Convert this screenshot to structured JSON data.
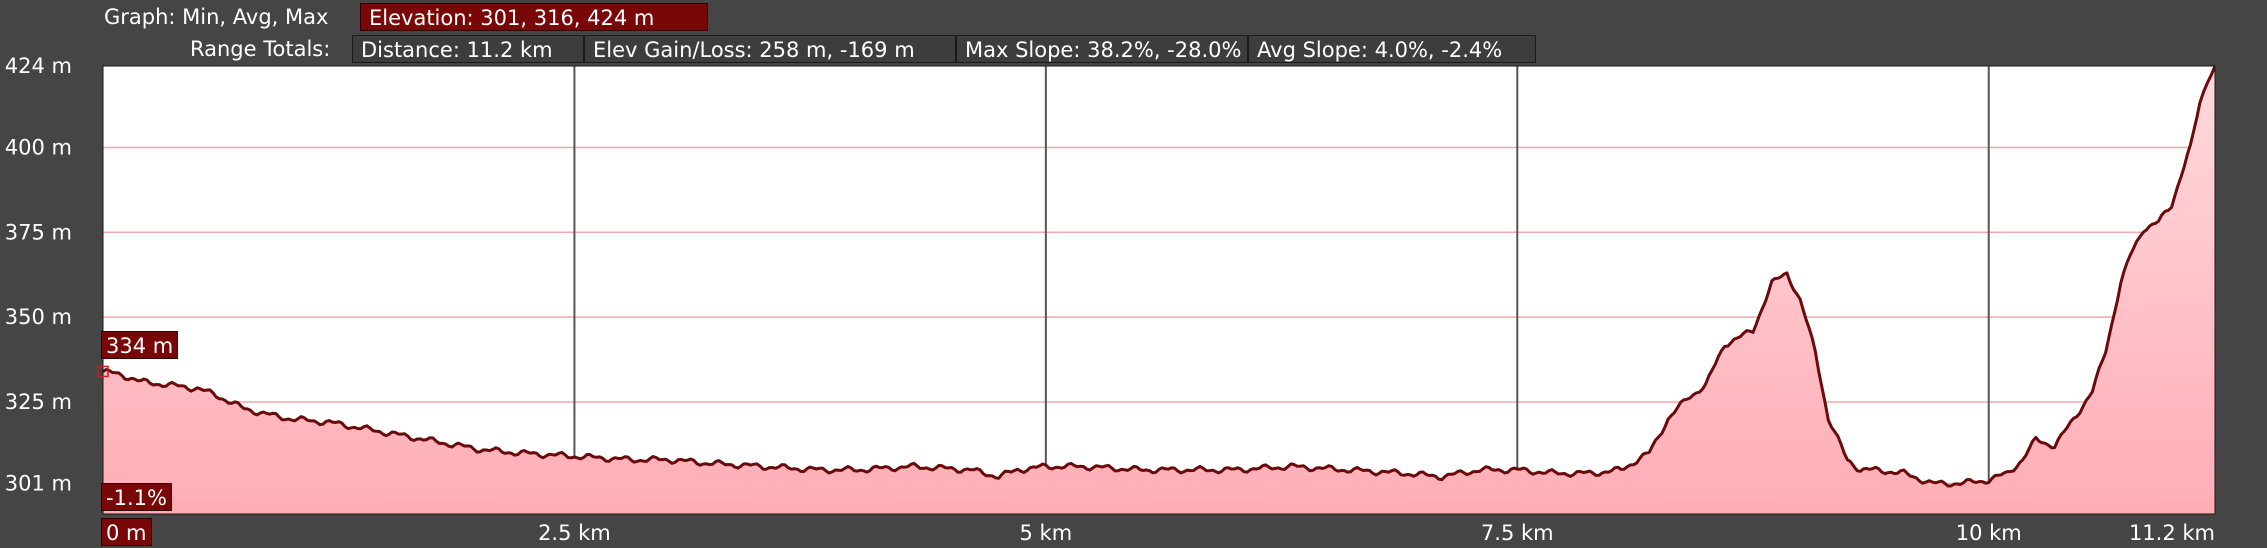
{
  "header": {
    "graph_label": "Graph: Min, Avg, Max",
    "elevation_stat": "Elevation: 301, 316, 424 m",
    "range_label": "Range Totals:",
    "distance": "Distance: 11.2 km",
    "elev_gain_loss": "Elev Gain/Loss: 258 m, -169 m",
    "max_slope": "Max Slope: 38.2%, -28.0%",
    "avg_slope": "Avg Slope: 4.0%, -2.4%"
  },
  "markers": {
    "start_elevation": "334 m",
    "start_slope": "-1.1%",
    "start_distance": "0 m"
  },
  "colors": {
    "background": "#454545",
    "plot_bg": "#ffffff",
    "line": "#6b0a0a",
    "fill_top": "#ffd9dd",
    "fill_bottom": "#ffadb5",
    "grid_h": "#f0a8ad",
    "grid_v": "#555555",
    "accent": "#7a0707"
  },
  "chart_data": {
    "type": "area",
    "title": "",
    "xlabel": "",
    "ylabel": "",
    "xlim": [
      0,
      11.2
    ],
    "ylim": [
      292,
      424
    ],
    "x_unit": "km",
    "y_unit": "m",
    "y_ticks": [
      {
        "value": 424,
        "label": "424 m"
      },
      {
        "value": 400,
        "label": "400 m"
      },
      {
        "value": 375,
        "label": "375 m"
      },
      {
        "value": 350,
        "label": "350 m"
      },
      {
        "value": 325,
        "label": "325 m"
      },
      {
        "value": 301,
        "label": "301 m"
      }
    ],
    "x_ticks": [
      {
        "value": 2.5,
        "label": "2.5 km"
      },
      {
        "value": 5,
        "label": "5 km"
      },
      {
        "value": 7.5,
        "label": "7.5 km"
      },
      {
        "value": 10,
        "label": "10 km"
      },
      {
        "value": 11.2,
        "label": "11.2 km"
      }
    ],
    "grid": true,
    "x": [
      0,
      0.1,
      0.2,
      0.35,
      0.5,
      0.6,
      0.75,
      0.9,
      1.0,
      1.2,
      1.4,
      1.6,
      1.8,
      2.0,
      2.2,
      2.5,
      2.8,
      3.0,
      3.2,
      3.5,
      3.8,
      4.0,
      4.3,
      4.6,
      4.75,
      4.85,
      5.0,
      5.2,
      5.5,
      5.8,
      6.0,
      6.3,
      6.6,
      6.9,
      7.1,
      7.3,
      7.5,
      7.7,
      7.9,
      8.05,
      8.2,
      8.3,
      8.4,
      8.5,
      8.6,
      8.75,
      8.85,
      8.93,
      9.0,
      9.08,
      9.15,
      9.25,
      9.32,
      9.4,
      9.55,
      9.7,
      9.85,
      10.0,
      10.1,
      10.18,
      10.25,
      10.35,
      10.45,
      10.55,
      10.62,
      10.7,
      10.75,
      10.82,
      10.9,
      10.97,
      11.02,
      11.07,
      11.12,
      11.16,
      11.2
    ],
    "y": [
      334,
      333,
      331,
      330,
      329,
      327,
      323,
      321,
      320,
      319,
      317,
      315,
      313,
      311,
      310,
      309,
      308,
      308,
      307,
      306,
      305,
      305,
      306,
      305,
      303,
      305,
      306,
      306,
      305,
      305,
      305,
      306,
      305,
      304,
      303,
      305,
      305,
      304,
      304,
      305,
      310,
      320,
      326,
      330,
      342,
      346,
      360,
      363,
      355,
      340,
      320,
      308,
      305,
      305,
      304,
      301,
      301,
      302,
      304,
      308,
      314,
      312,
      320,
      328,
      340,
      360,
      368,
      376,
      378,
      383,
      392,
      400,
      413,
      420,
      424
    ]
  }
}
